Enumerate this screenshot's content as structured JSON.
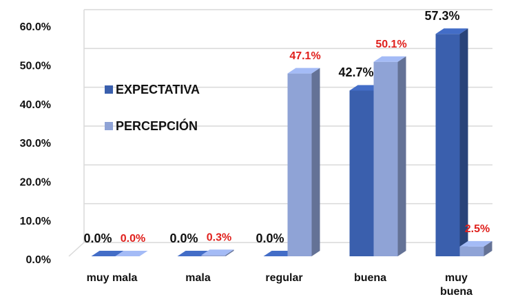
{
  "chart_data": {
    "type": "bar3d",
    "categories": [
      "muy mala",
      "mala",
      "regular",
      "buena",
      "muy\nbuena"
    ],
    "series": [
      {
        "name": "EXPECTATIVA",
        "color": "#3a5fad",
        "values": [
          0,
          0,
          0,
          42.7,
          57.3
        ],
        "value_labels": [
          "0.0%",
          "0.0%",
          "0.0%",
          "42.7%",
          "57.3%"
        ],
        "label_color": "#111111"
      },
      {
        "name": "PERCEPCIÓN",
        "color": "#8fa3d6",
        "values": [
          0,
          0.3,
          47.1,
          50.1,
          2.5
        ],
        "value_labels": [
          "0.0%",
          "0.3%",
          "47.1%",
          "50.1%",
          "2.5%"
        ],
        "label_color": "#e0201c"
      }
    ],
    "ylim": [
      0,
      60
    ],
    "yticks": [
      {
        "value": 0,
        "label": "0.0%"
      },
      {
        "value": 10,
        "label": "10.0%"
      },
      {
        "value": 20,
        "label": "20.0%"
      },
      {
        "value": 30,
        "label": "30.0%"
      },
      {
        "value": 40,
        "label": "40.0%"
      },
      {
        "value": 50,
        "label": "50.0%"
      },
      {
        "value": 60,
        "label": "60.0%"
      }
    ],
    "grid": true,
    "legend": "left"
  }
}
